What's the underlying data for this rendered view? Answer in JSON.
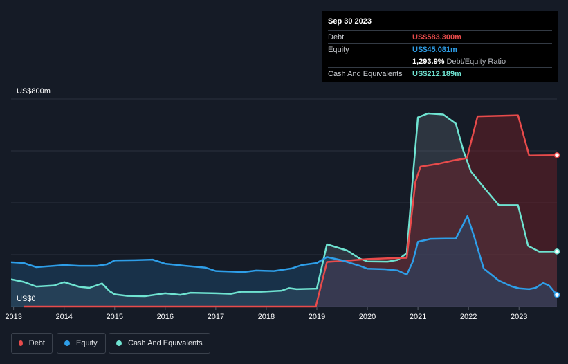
{
  "tooltip": {
    "date": "Sep 30 2023",
    "rows": [
      {
        "label": "Debt",
        "value": "US$583.300m",
        "color": "#e84b4b"
      },
      {
        "label": "Equity",
        "value": "US$45.081m",
        "color": "#2e9ee8"
      },
      {
        "label": "",
        "value": "1,293.9%",
        "suffix": "Debt/Equity Ratio",
        "color": "#ffffff"
      },
      {
        "label": "Cash And Equivalents",
        "value": "US$212.189m",
        "color": "#6fe3d1"
      }
    ]
  },
  "legend": [
    {
      "label": "Debt",
      "color": "#e84b4b"
    },
    {
      "label": "Equity",
      "color": "#2e9ee8"
    },
    {
      "label": "Cash And Equivalents",
      "color": "#6fe3d1"
    }
  ],
  "chart_data": {
    "type": "area",
    "title": "",
    "y_top_label": "US$800m",
    "y_bottom_label": "US$0",
    "ylim": [
      0,
      800
    ],
    "xlim": [
      2012.95,
      2023.75
    ],
    "x_tick_labels": [
      "2013",
      "2014",
      "2015",
      "2016",
      "2017",
      "2018",
      "2019",
      "2020",
      "2021",
      "2022",
      "2023"
    ],
    "x_tick_values": [
      2013,
      2014,
      2015,
      2016,
      2017,
      2018,
      2019,
      2020,
      2021,
      2022,
      2023
    ],
    "series": [
      {
        "name": "Equity",
        "color": "#2e9ee8",
        "points": [
          [
            2012.95,
            171
          ],
          [
            2013.2,
            168
          ],
          [
            2013.45,
            152
          ],
          [
            2013.8,
            157
          ],
          [
            2014.0,
            160
          ],
          [
            2014.3,
            157
          ],
          [
            2014.65,
            157
          ],
          [
            2014.85,
            163
          ],
          [
            2015.0,
            178
          ],
          [
            2015.4,
            179
          ],
          [
            2015.75,
            181
          ],
          [
            2016.0,
            165
          ],
          [
            2016.4,
            157
          ],
          [
            2016.8,
            150
          ],
          [
            2017.0,
            137
          ],
          [
            2017.3,
            135
          ],
          [
            2017.55,
            133
          ],
          [
            2017.8,
            139
          ],
          [
            2018.15,
            137
          ],
          [
            2018.5,
            147
          ],
          [
            2018.7,
            160
          ],
          [
            2019.0,
            168
          ],
          [
            2019.2,
            191
          ],
          [
            2019.5,
            178
          ],
          [
            2019.85,
            157
          ],
          [
            2020.0,
            146
          ],
          [
            2020.35,
            144
          ],
          [
            2020.6,
            139
          ],
          [
            2020.78,
            123
          ],
          [
            2020.9,
            174
          ],
          [
            2021.0,
            250
          ],
          [
            2021.25,
            261
          ],
          [
            2021.55,
            262
          ],
          [
            2021.75,
            262
          ],
          [
            2021.85,
            300
          ],
          [
            2021.98,
            349
          ],
          [
            2022.12,
            265
          ],
          [
            2022.3,
            147
          ],
          [
            2022.6,
            100
          ],
          [
            2022.85,
            78
          ],
          [
            2023.0,
            70
          ],
          [
            2023.2,
            67
          ],
          [
            2023.33,
            72
          ],
          [
            2023.48,
            91
          ],
          [
            2023.6,
            80
          ],
          [
            2023.75,
            45
          ]
        ]
      },
      {
        "name": "Debt",
        "color": "#e84b4b",
        "points": [
          [
            2013.2,
            0
          ],
          [
            2018.98,
            0
          ],
          [
            2019.2,
            172
          ],
          [
            2019.6,
            177
          ],
          [
            2020.0,
            183
          ],
          [
            2020.4,
            186
          ],
          [
            2020.78,
            188
          ],
          [
            2020.95,
            480
          ],
          [
            2021.05,
            539
          ],
          [
            2021.4,
            550
          ],
          [
            2021.7,
            563
          ],
          [
            2021.97,
            572
          ],
          [
            2022.18,
            733
          ],
          [
            2022.6,
            735
          ],
          [
            2022.98,
            737
          ],
          [
            2023.2,
            582
          ],
          [
            2023.75,
            583.3
          ]
        ]
      },
      {
        "name": "Cash And Equivalents",
        "color": "#6fe3d1",
        "points": [
          [
            2012.95,
            105
          ],
          [
            2013.2,
            95
          ],
          [
            2013.45,
            77
          ],
          [
            2013.8,
            81
          ],
          [
            2014.0,
            94
          ],
          [
            2014.3,
            76
          ],
          [
            2014.5,
            72
          ],
          [
            2014.75,
            89
          ],
          [
            2014.9,
            59
          ],
          [
            2015.0,
            47
          ],
          [
            2015.25,
            41
          ],
          [
            2015.6,
            40
          ],
          [
            2016.0,
            51
          ],
          [
            2016.3,
            45
          ],
          [
            2016.5,
            53
          ],
          [
            2017.0,
            51
          ],
          [
            2017.3,
            49
          ],
          [
            2017.5,
            57
          ],
          [
            2017.9,
            57
          ],
          [
            2018.3,
            61
          ],
          [
            2018.45,
            71
          ],
          [
            2018.6,
            67
          ],
          [
            2019.0,
            69
          ],
          [
            2019.2,
            240
          ],
          [
            2019.6,
            216
          ],
          [
            2019.85,
            185
          ],
          [
            2020.0,
            174
          ],
          [
            2020.4,
            173
          ],
          [
            2020.6,
            180
          ],
          [
            2020.78,
            206
          ],
          [
            2020.9,
            500
          ],
          [
            2021.0,
            729
          ],
          [
            2021.2,
            744
          ],
          [
            2021.5,
            740
          ],
          [
            2021.75,
            705
          ],
          [
            2021.9,
            600
          ],
          [
            2022.05,
            520
          ],
          [
            2022.3,
            460
          ],
          [
            2022.6,
            391
          ],
          [
            2022.98,
            391
          ],
          [
            2023.18,
            234
          ],
          [
            2023.4,
            212
          ],
          [
            2023.75,
            212.2
          ]
        ]
      }
    ]
  }
}
